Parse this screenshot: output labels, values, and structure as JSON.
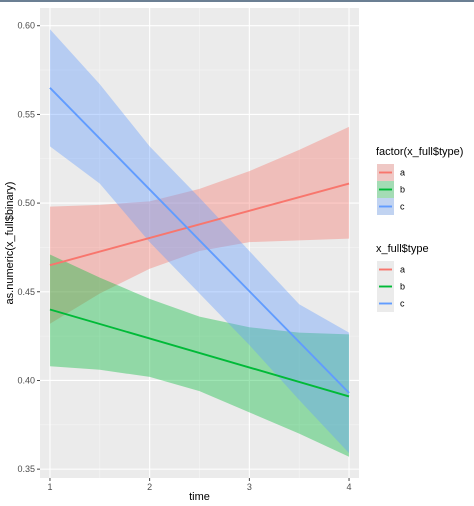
{
  "chart_data": {
    "type": "line",
    "xlabel": "time",
    "ylabel": "as.numeric(x_full$binary)",
    "xlim": [
      0.9,
      4.1
    ],
    "ylim": [
      0.345,
      0.61
    ],
    "x_ticks": [
      1,
      2,
      3,
      4
    ],
    "x_tick_labels": [
      "1",
      "2",
      "3",
      "4"
    ],
    "y_ticks": [
      0.35,
      0.4,
      0.45,
      0.5,
      0.55,
      0.6
    ],
    "y_tick_labels": [
      "0.35",
      "0.40",
      "0.45",
      "0.50",
      "0.55",
      "0.60"
    ],
    "grid": true,
    "legend_position": "right",
    "panel_color": "#ebebeb",
    "series": [
      {
        "name": "a",
        "color": "#f8766d",
        "x": [
          1,
          4
        ],
        "y": [
          0.465,
          0.511
        ],
        "ci_lower": [
          0.432,
          0.48
        ],
        "ci_upper": [
          0.498,
          0.543
        ],
        "ci_mid_x": [
          1.5,
          2.0,
          2.5,
          3.0,
          3.5
        ],
        "ci_mid_lower": [
          0.449,
          0.463,
          0.473,
          0.478,
          0.479
        ],
        "ci_mid_upper": [
          0.499,
          0.501,
          0.508,
          0.518,
          0.53
        ]
      },
      {
        "name": "b",
        "color": "#00ba38",
        "x": [
          1,
          4
        ],
        "y": [
          0.44,
          0.391
        ],
        "ci_lower": [
          0.408,
          0.357
        ],
        "ci_upper": [
          0.471,
          0.426
        ],
        "ci_mid_x": [
          1.5,
          2.0,
          2.5,
          3.0,
          3.5
        ],
        "ci_mid_lower": [
          0.406,
          0.402,
          0.394,
          0.382,
          0.37
        ],
        "ci_mid_upper": [
          0.458,
          0.446,
          0.436,
          0.43,
          0.427
        ]
      },
      {
        "name": "c",
        "color": "#619cff",
        "x": [
          1,
          4
        ],
        "y": [
          0.565,
          0.393
        ],
        "ci_lower": [
          0.532,
          0.359
        ],
        "ci_upper": [
          0.598,
          0.427
        ],
        "ci_mid_x": [
          1.5,
          2.0,
          2.5,
          3.0,
          3.5
        ],
        "ci_mid_lower": [
          0.511,
          0.478,
          0.449,
          0.42,
          0.389
        ],
        "ci_mid_upper": [
          0.567,
          0.532,
          0.503,
          0.473,
          0.443
        ]
      }
    ],
    "legends": [
      {
        "title": "factor(x_full$type)",
        "entries": [
          {
            "label": "a",
            "color": "#f8766d"
          },
          {
            "label": "b",
            "color": "#00ba38"
          },
          {
            "label": "c",
            "color": "#619cff"
          }
        ]
      },
      {
        "title": "x_full$type",
        "entries": [
          {
            "label": "a",
            "color": "#f8766d"
          },
          {
            "label": "b",
            "color": "#00ba38"
          },
          {
            "label": "c",
            "color": "#619cff"
          }
        ]
      }
    ]
  }
}
